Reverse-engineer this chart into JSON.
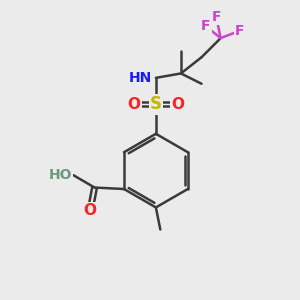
{
  "bg_color": "#ebebeb",
  "bond_color": "#3a3a3a",
  "bond_width": 1.8,
  "font_size": 11,
  "fig_size": [
    3.0,
    3.0
  ],
  "dpi": 100,
  "atom_colors": {
    "C": "#3a3a3a",
    "N": "#1a1aff",
    "O": "#ff2020",
    "S": "#c8b400",
    "F": "#cc44cc",
    "H_gray": "#6a9a7a"
  }
}
